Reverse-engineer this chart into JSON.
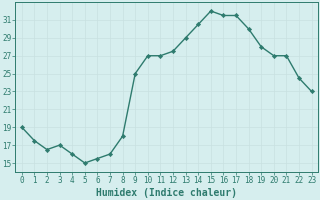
{
  "x": [
    0,
    1,
    2,
    3,
    4,
    5,
    6,
    7,
    8,
    9,
    10,
    11,
    12,
    13,
    14,
    15,
    16,
    17,
    18,
    19,
    20,
    21,
    22,
    23
  ],
  "y": [
    19,
    17.5,
    16.5,
    17,
    16,
    15,
    15.5,
    16,
    18,
    25,
    27,
    27,
    27.5,
    29,
    30.5,
    32,
    31.5,
    31.5,
    30,
    28,
    27,
    27,
    24.5,
    23
  ],
  "line_color": "#2e7b6e",
  "marker": "D",
  "marker_size": 2.2,
  "bg_color": "#d6eeee",
  "grid_color": "#b8d8d8",
  "xlabel": "Humidex (Indice chaleur)",
  "xlabel_fontsize": 7,
  "xlim": [
    -0.5,
    23.5
  ],
  "ylim": [
    14,
    33
  ],
  "yticks": [
    15,
    17,
    19,
    21,
    23,
    25,
    27,
    29,
    31
  ],
  "xticks": [
    0,
    1,
    2,
    3,
    4,
    5,
    6,
    7,
    8,
    9,
    10,
    11,
    12,
    13,
    14,
    15,
    16,
    17,
    18,
    19,
    20,
    21,
    22,
    23
  ],
  "tick_fontsize": 5.5,
  "line_width": 1.0
}
